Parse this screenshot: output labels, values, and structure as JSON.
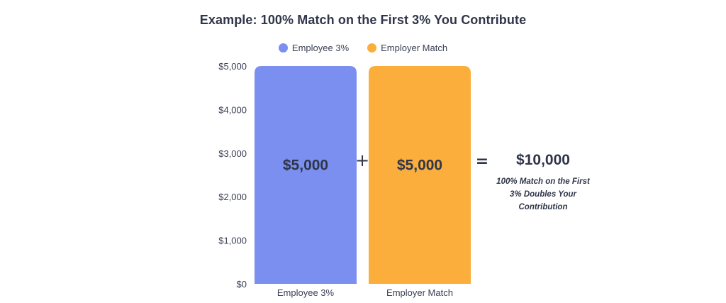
{
  "chart_data": {
    "type": "bar",
    "title": "Example: 100% Match on the First 3% You Contribute",
    "categories": [
      "Employee 3%",
      "Employer Match"
    ],
    "values": [
      5000,
      5000
    ],
    "value_labels": [
      "$5,000",
      "$5,000"
    ],
    "colors": [
      "#7b8ff0",
      "#fbae3c"
    ],
    "ylim": [
      0,
      5000
    ],
    "yticks": [
      0,
      1000,
      2000,
      3000,
      4000,
      5000
    ],
    "ytick_labels": [
      "$0",
      "$1,000",
      "$2,000",
      "$3,000",
      "$4,000",
      "$5,000"
    ],
    "legend": [
      {
        "label": "Employee 3%",
        "color": "#7b8ff0"
      },
      {
        "label": "Employer Match",
        "color": "#fbae3c"
      }
    ],
    "legend_position": "top-center",
    "grid": false,
    "operators": {
      "plus": "+",
      "equals": "="
    },
    "result": {
      "total": "$10,000",
      "note": "100% Match on the First 3% Doubles Your Contribution"
    }
  }
}
